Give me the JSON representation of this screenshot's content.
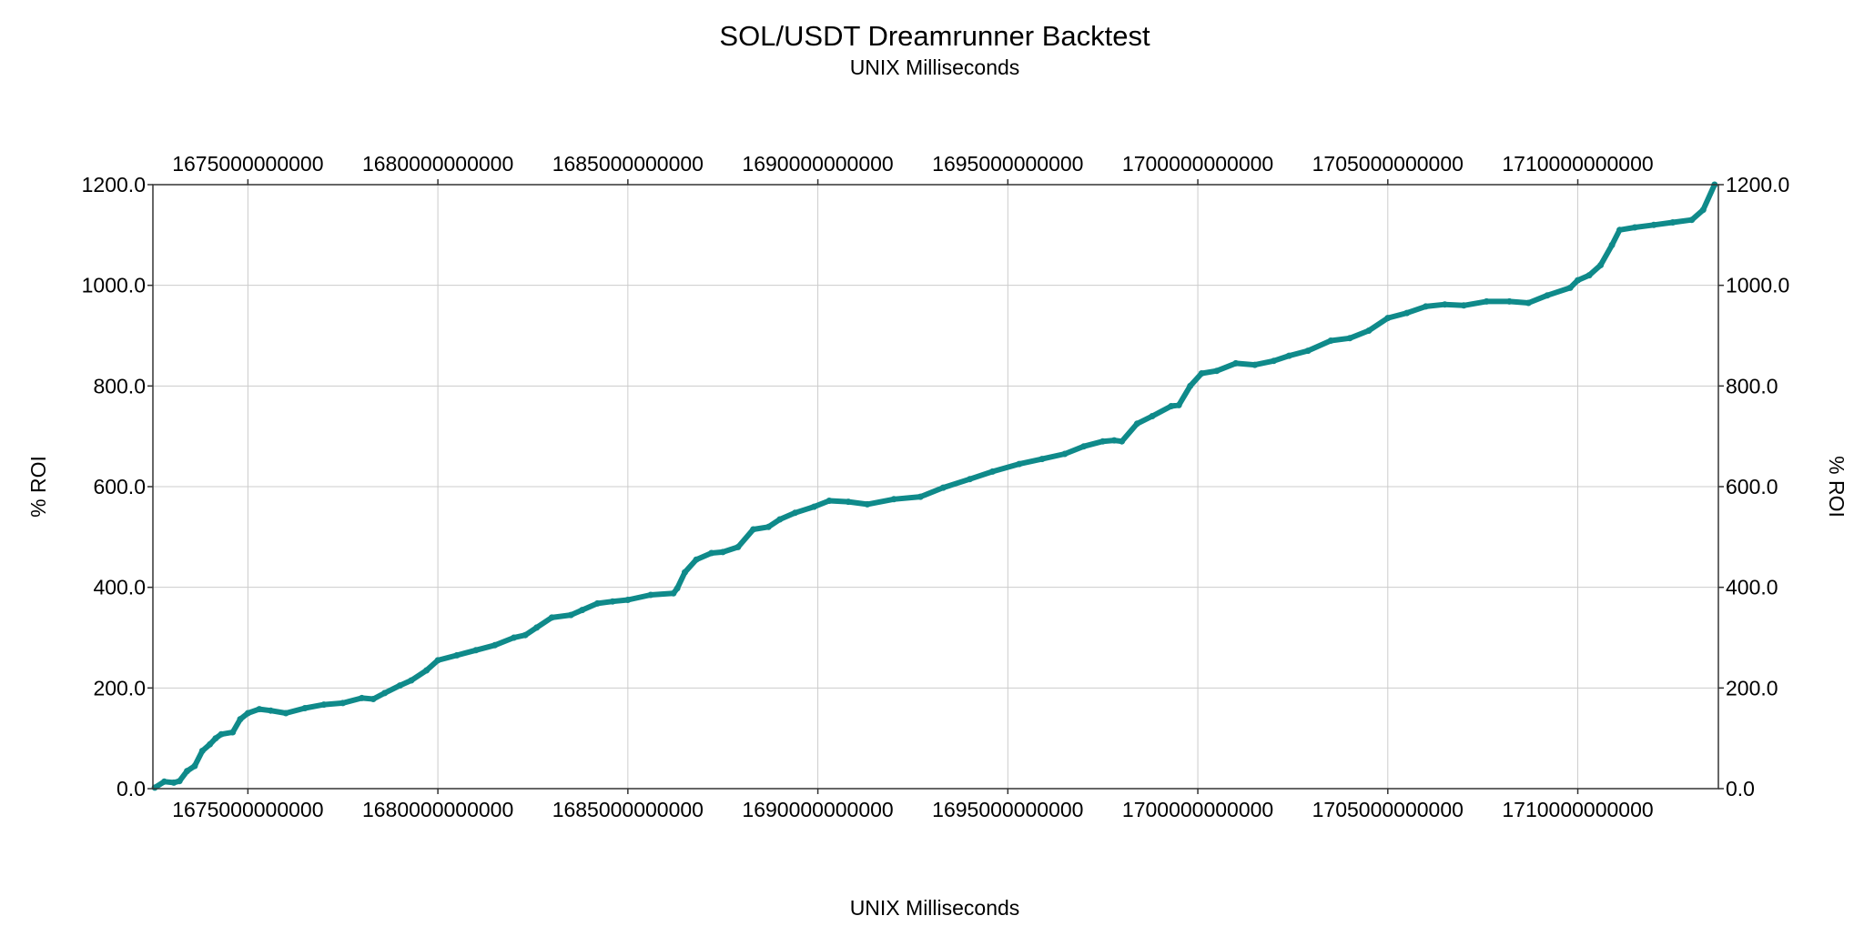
{
  "chart_data": {
    "type": "line",
    "title": "SOL/USDT Dreamrunner Backtest",
    "subtitle": "UNIX Milliseconds",
    "xlabel": "UNIX Milliseconds",
    "ylabel": "% ROI",
    "xlim": [
      1672500000000,
      1713700000000
    ],
    "ylim": [
      0,
      1200
    ],
    "x_ticks": [
      1675000000000,
      1680000000000,
      1685000000000,
      1690000000000,
      1695000000000,
      1700000000000,
      1705000000000,
      1710000000000
    ],
    "x_tick_labels": [
      "1675000000000",
      "1680000000000",
      "1685000000000",
      "1690000000000",
      "1695000000000",
      "1700000000000",
      "1705000000000",
      "1710000000000"
    ],
    "y_ticks": [
      0,
      200,
      400,
      600,
      800,
      1000,
      1200
    ],
    "y_tick_labels": [
      "0.0",
      "200.0",
      "400.0",
      "600.0",
      "800.0",
      "1000.0",
      "1200.0"
    ],
    "grid": true,
    "colors": {
      "series": "#0f8a8a",
      "grid": "#cccccc",
      "axis": "#333333"
    },
    "series": [
      {
        "x": [
          1672550000000,
          1672800000000,
          1673050000000,
          1673200000000,
          1673400000000,
          1673600000000,
          1673800000000,
          1674000000000,
          1674150000000,
          1674300000000,
          1674600000000,
          1674800000000,
          1675000000000,
          1675300000000,
          1675600000000,
          1676000000000,
          1676500000000,
          1677000000000,
          1677500000000,
          1678000000000,
          1678300000000,
          1678600000000,
          1679000000000,
          1679300000000,
          1679700000000,
          1680000000000,
          1680500000000,
          1681000000000,
          1681500000000,
          1682000000000,
          1682300000000,
          1682600000000,
          1683000000000,
          1683500000000,
          1683800000000,
          1684200000000,
          1684600000000,
          1685000000000,
          1685600000000,
          1686200000000,
          1686300000000,
          1686500000000,
          1686800000000,
          1687200000000,
          1687500000000,
          1687900000000,
          1688300000000,
          1688700000000,
          1689000000000,
          1689400000000,
          1689900000000,
          1690300000000,
          1690800000000,
          1691300000000,
          1692000000000,
          1692700000000,
          1693300000000,
          1694000000000,
          1694600000000,
          1695300000000,
          1695900000000,
          1696500000000,
          1697000000000,
          1697500000000,
          1697800000000,
          1698000000000,
          1698400000000,
          1698800000000,
          1699300000000,
          1699500000000,
          1699800000000,
          1700100000000,
          1700500000000,
          1701000000000,
          1701500000000,
          1702000000000,
          1702400000000,
          1702900000000,
          1703500000000,
          1704000000000,
          1704500000000,
          1705000000000,
          1705500000000,
          1706000000000,
          1706500000000,
          1707000000000,
          1707600000000,
          1708200000000,
          1708700000000,
          1709200000000,
          1709800000000,
          1710000000000,
          1710300000000,
          1710600000000,
          1710900000000,
          1711100000000,
          1711500000000,
          1712000000000,
          1712500000000,
          1713000000000,
          1713300000000,
          1713600000000
        ],
        "y": [
          2,
          14,
          12,
          15,
          35,
          45,
          75,
          88,
          100,
          108,
          112,
          138,
          150,
          158,
          155,
          150,
          160,
          167,
          170,
          180,
          178,
          190,
          205,
          215,
          235,
          255,
          265,
          275,
          285,
          300,
          305,
          320,
          340,
          345,
          355,
          368,
          372,
          375,
          385,
          388,
          398,
          430,
          455,
          468,
          470,
          480,
          515,
          520,
          535,
          548,
          560,
          572,
          570,
          565,
          575,
          580,
          598,
          615,
          630,
          645,
          655,
          665,
          680,
          690,
          692,
          690,
          725,
          740,
          760,
          762,
          800,
          825,
          830,
          845,
          842,
          850,
          860,
          870,
          890,
          895,
          910,
          935,
          945,
          958,
          962,
          960,
          968,
          968,
          965,
          980,
          995,
          1010,
          1020,
          1040,
          1080,
          1110,
          1115,
          1120,
          1125,
          1130,
          1150,
          1200
        ]
      }
    ]
  }
}
